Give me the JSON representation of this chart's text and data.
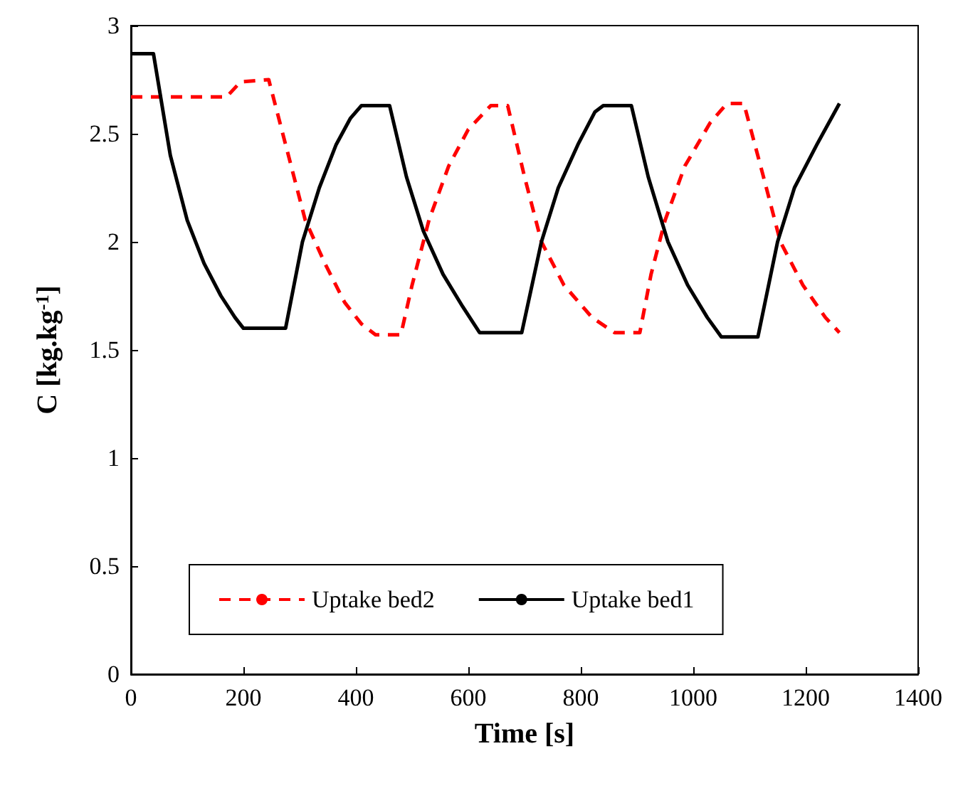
{
  "chart_data": {
    "type": "line",
    "xlabel": "Time [s]",
    "ylabel": "C [kg.kg$^{-1}$]",
    "xlim": [
      0,
      1400
    ],
    "xticks": [
      0,
      200,
      400,
      600,
      800,
      1000,
      1200,
      1400
    ],
    "ylim": [
      0,
      3
    ],
    "yticks": [
      0,
      0.5,
      1,
      1.5,
      2,
      2.5,
      3
    ],
    "grid": false,
    "legend": "bottom left",
    "marker": "none",
    "series": [
      {
        "name": "Uptake bed2",
        "color": "#ff0000",
        "line_style": "dashed",
        "x": [
          0,
          170,
          195,
          245,
          280,
          310,
          345,
          380,
          410,
          435,
          480,
          500,
          530,
          565,
          600,
          640,
          670,
          700,
          730,
          770,
          820,
          860,
          905,
          925,
          950,
          985,
          1030,
          1060,
          1090,
          1125,
          1155,
          1195,
          1235,
          1260
        ],
        "values": [
          2.67,
          2.67,
          2.74,
          2.75,
          2.4,
          2.1,
          1.9,
          1.72,
          1.62,
          1.57,
          1.57,
          1.8,
          2.1,
          2.35,
          2.52,
          2.63,
          2.63,
          2.3,
          2.0,
          1.8,
          1.65,
          1.58,
          1.58,
          1.85,
          2.1,
          2.35,
          2.55,
          2.64,
          2.64,
          2.3,
          2.0,
          1.8,
          1.65,
          1.58
        ]
      },
      {
        "name": "Uptake bed1",
        "color": "#000000",
        "line_style": "solid",
        "x": [
          0,
          40,
          70,
          100,
          130,
          160,
          185,
          200,
          275,
          305,
          335,
          365,
          390,
          410,
          460,
          490,
          520,
          555,
          590,
          620,
          695,
          730,
          760,
          795,
          825,
          840,
          890,
          920,
          955,
          990,
          1025,
          1050,
          1115,
          1150,
          1180,
          1220,
          1260
        ],
        "values": [
          2.87,
          2.87,
          2.4,
          2.1,
          1.9,
          1.75,
          1.65,
          1.6,
          1.6,
          2.0,
          2.25,
          2.45,
          2.57,
          2.63,
          2.63,
          2.3,
          2.05,
          1.85,
          1.7,
          1.58,
          1.58,
          2.0,
          2.25,
          2.45,
          2.6,
          2.63,
          2.63,
          2.3,
          2.0,
          1.8,
          1.65,
          1.56,
          1.56,
          2.0,
          2.25,
          2.45,
          2.64
        ]
      }
    ]
  }
}
